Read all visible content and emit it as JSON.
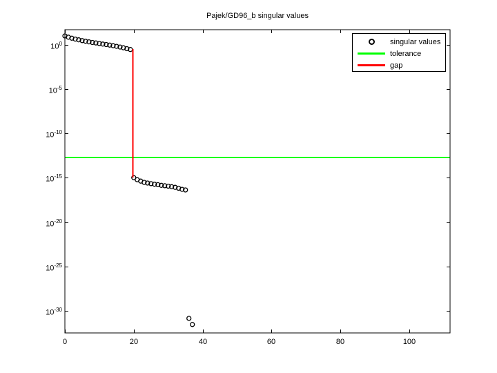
{
  "figure": {
    "background": "#ffffff",
    "axis_color": "#000000",
    "text_color": "#000000"
  },
  "chart_data": {
    "type": "scatter",
    "title": "Pajek/GD96_b singular values",
    "xlabel": "",
    "ylabel": "",
    "yscale": "log",
    "xlim": [
      0,
      111.8
    ],
    "ylim_exponents": [
      -32.5,
      1.72
    ],
    "xticks": [
      0,
      20,
      40,
      60,
      80,
      100
    ],
    "ytick_exponents": [
      0,
      -5,
      -10,
      -15,
      -20,
      -25,
      -30
    ],
    "grid": false,
    "series": [
      {
        "name": "singular values",
        "style": "marker-circle",
        "color": "#000000",
        "points": [
          [
            0,
            10.5
          ],
          [
            1,
            7.6
          ],
          [
            2,
            5.75
          ],
          [
            3,
            4.57
          ],
          [
            4,
            3.72
          ],
          [
            5,
            3.09
          ],
          [
            6,
            2.63
          ],
          [
            7,
            2.24
          ],
          [
            8,
            1.91
          ],
          [
            9,
            1.66
          ],
          [
            10,
            1.45
          ],
          [
            11,
            1.26
          ],
          [
            12,
            1.1
          ],
          [
            13,
            0.955
          ],
          [
            14,
            0.813
          ],
          [
            15,
            0.692
          ],
          [
            16,
            0.575
          ],
          [
            17,
            0.479
          ],
          [
            18,
            0.38
          ],
          [
            19,
            0.302
          ],
          [
            20,
            1.05e-15
          ],
          [
            21,
            6.2e-16
          ],
          [
            22,
            4.3e-16
          ],
          [
            23,
            3.1e-16
          ],
          [
            24,
            2.6e-16
          ],
          [
            25,
            2.2e-16
          ],
          [
            26,
            1.9e-16
          ],
          [
            27,
            1.7e-16
          ],
          [
            28,
            1.45e-16
          ],
          [
            29,
            1.3e-16
          ],
          [
            30,
            1.15e-16
          ],
          [
            31,
            1e-16
          ],
          [
            32,
            8.5e-17
          ],
          [
            33,
            6.8e-17
          ],
          [
            34,
            5.1e-17
          ],
          [
            35,
            4.3e-17
          ],
          [
            36,
            1.4e-31
          ],
          [
            37,
            2.8e-32
          ]
        ]
      },
      {
        "name": "tolerance",
        "style": "hline",
        "color": "#00ff00",
        "y": 2e-13
      },
      {
        "name": "gap",
        "style": "vline",
        "color": "#ff0000",
        "x": 19.7,
        "y_top": 0.35,
        "y_bottom": 1.05e-15
      }
    ],
    "legend": {
      "position": "northeast",
      "items": [
        {
          "label": "singular values",
          "swatch": "circle",
          "color": "#000000"
        },
        {
          "label": "tolerance",
          "swatch": "line",
          "color": "#00ff00"
        },
        {
          "label": "gap",
          "swatch": "line",
          "color": "#ff0000"
        }
      ]
    }
  }
}
